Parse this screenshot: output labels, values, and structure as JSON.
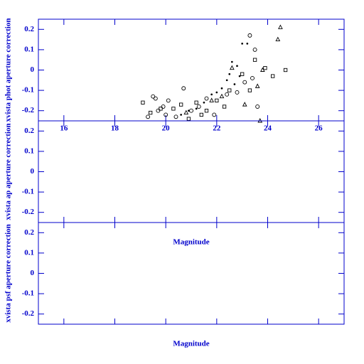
{
  "chart_data": [
    {
      "type": "scatter",
      "ylabel": "xvista phot aperture correction",
      "show_xtick_labels": true,
      "xlim": [
        15,
        27
      ],
      "ylim": [
        -0.25,
        0.25
      ],
      "xticks": [
        16,
        18,
        20,
        22,
        24,
        26
      ],
      "yticks": [
        0.2,
        0.1,
        0,
        -0.1,
        -0.2
      ],
      "axis_color": "#0000cc",
      "series": [
        {
          "marker": "circle",
          "color": "#000000",
          "x": [
            19.5,
            19.6,
            19.7,
            19.9,
            20.1,
            20.0,
            20.7,
            21.0,
            21.3,
            21.6,
            22.4,
            23.3,
            23.5,
            23.1,
            23.6,
            23.4,
            22.8,
            19.3,
            21.9,
            20.4
          ],
          "values": [
            -0.13,
            -0.14,
            -0.2,
            -0.18,
            -0.15,
            -0.22,
            -0.09,
            -0.2,
            -0.18,
            -0.14,
            -0.12,
            0.17,
            0.1,
            -0.06,
            -0.18,
            -0.04,
            -0.11,
            -0.23,
            -0.22,
            -0.23
          ]
        },
        {
          "marker": "square",
          "color": "#000000",
          "x": [
            19.1,
            19.4,
            19.8,
            20.3,
            20.6,
            21.2,
            21.6,
            22.0,
            22.5,
            23.0,
            23.5,
            23.9,
            24.2,
            24.7,
            23.3,
            20.9,
            21.4,
            22.3
          ],
          "values": [
            -0.16,
            -0.21,
            -0.19,
            -0.19,
            -0.17,
            -0.16,
            -0.2,
            -0.15,
            -0.1,
            -0.02,
            0.05,
            0.01,
            -0.03,
            0,
            -0.1,
            -0.24,
            -0.22,
            -0.18
          ]
        },
        {
          "marker": "triangle",
          "color": "#000000",
          "x": [
            24.5,
            24.4,
            23.8,
            23.6,
            22.6,
            23.1,
            21.8,
            20.8,
            22.2,
            23.7
          ],
          "values": [
            0.21,
            0.15,
            0,
            -0.08,
            0.01,
            -0.17,
            -0.15,
            -0.21,
            -0.13,
            -0.25
          ]
        },
        {
          "marker": "dot",
          "color": "#000000",
          "x": [
            22.6,
            22.8,
            22.9,
            23.0,
            22.4,
            22.2,
            22.0,
            21.8,
            21.5,
            21.2,
            20.9,
            20.6,
            22.5,
            23.2,
            22.7
          ],
          "values": [
            0.04,
            0.02,
            -0.03,
            0.13,
            -0.05,
            -0.09,
            -0.11,
            -0.12,
            -0.16,
            -0.19,
            -0.2,
            -0.22,
            -0.02,
            0.13,
            -0.07
          ]
        }
      ]
    },
    {
      "type": "scatter",
      "ylabel": "xvista ap aperture correction",
      "xlabel": "Magnitude",
      "show_xtick_labels": false,
      "xlim": [
        15,
        27
      ],
      "ylim": [
        -0.25,
        0.25
      ],
      "xticks": [
        16,
        18,
        20,
        22,
        24,
        26
      ],
      "yticks": [
        0.2,
        0.1,
        0,
        -0.1,
        -0.2
      ],
      "axis_color": "#0000cc",
      "series": []
    },
    {
      "type": "scatter",
      "ylabel": "xvista psf aperture correction",
      "xlabel": "Magnitude",
      "show_xtick_labels": false,
      "xlim": [
        15,
        27
      ],
      "ylim": [
        -0.25,
        0.25
      ],
      "xticks": [
        16,
        18,
        20,
        22,
        24,
        26
      ],
      "yticks": [
        0.2,
        0.1,
        0,
        -0.1,
        -0.2
      ],
      "axis_color": "#0000cc",
      "series": []
    }
  ]
}
